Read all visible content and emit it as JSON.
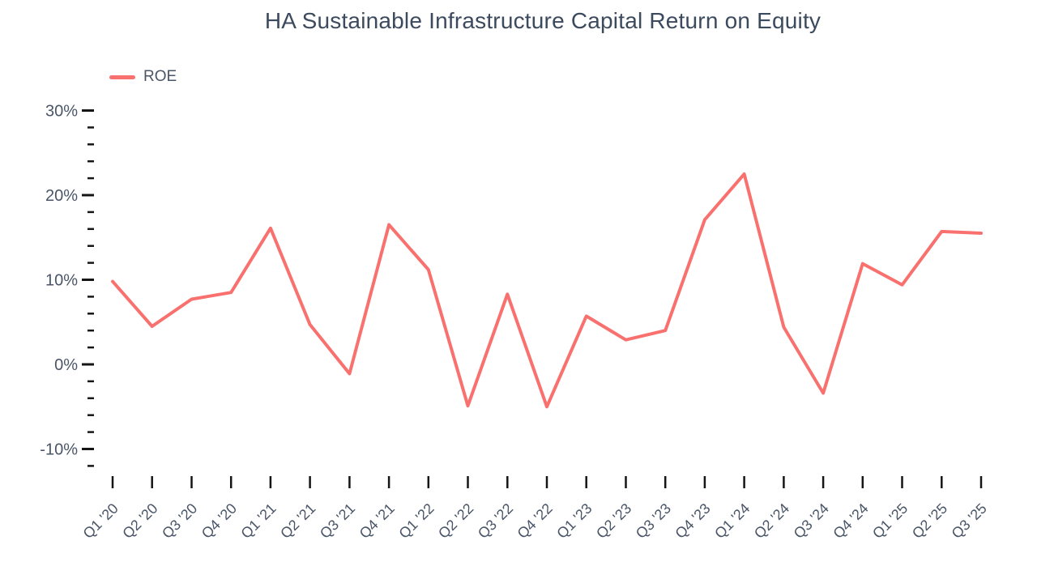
{
  "title": "HA Sustainable Infrastructure Capital Return on Equity",
  "legend": {
    "label": "ROE"
  },
  "colors": {
    "line": "#F8716E",
    "title_text": "#3C4A5E",
    "axis_text": "#4A5668",
    "tick": "#151515",
    "background": "#FFFFFF"
  },
  "chart_data": {
    "type": "line",
    "title": "HA Sustainable Infrastructure Capital Return on Equity",
    "categories": [
      "Q1 '20",
      "Q2 '20",
      "Q3 '20",
      "Q4 '20",
      "Q1 '21",
      "Q2 '21",
      "Q3 '21",
      "Q4 '21",
      "Q1 '22",
      "Q2 '22",
      "Q3 '22",
      "Q4 '22",
      "Q1 '23",
      "Q2 '23",
      "Q3 '23",
      "Q4 '23",
      "Q1 '24",
      "Q2 '24",
      "Q3 '24",
      "Q4 '24",
      "Q1 '25",
      "Q2 '25",
      "Q3 '25"
    ],
    "series": [
      {
        "name": "ROE",
        "values": [
          9.8,
          4.5,
          7.7,
          8.5,
          16.1,
          4.7,
          -1.1,
          16.5,
          11.2,
          -4.9,
          8.3,
          -5.0,
          5.7,
          2.9,
          4.0,
          17.1,
          22.5,
          4.4,
          -3.4,
          11.9,
          9.4,
          15.7,
          15.5
        ]
      }
    ],
    "xlabel": "",
    "ylabel": "",
    "y_axis": {
      "unit": "%",
      "major_ticks": [
        30,
        20,
        10,
        0,
        -10
      ],
      "minor_step": 2,
      "max": 30,
      "min": -12
    },
    "ylim": [
      -12,
      30
    ],
    "grid": false,
    "legend_position": "top-left",
    "x_tick_rotation": -45
  }
}
